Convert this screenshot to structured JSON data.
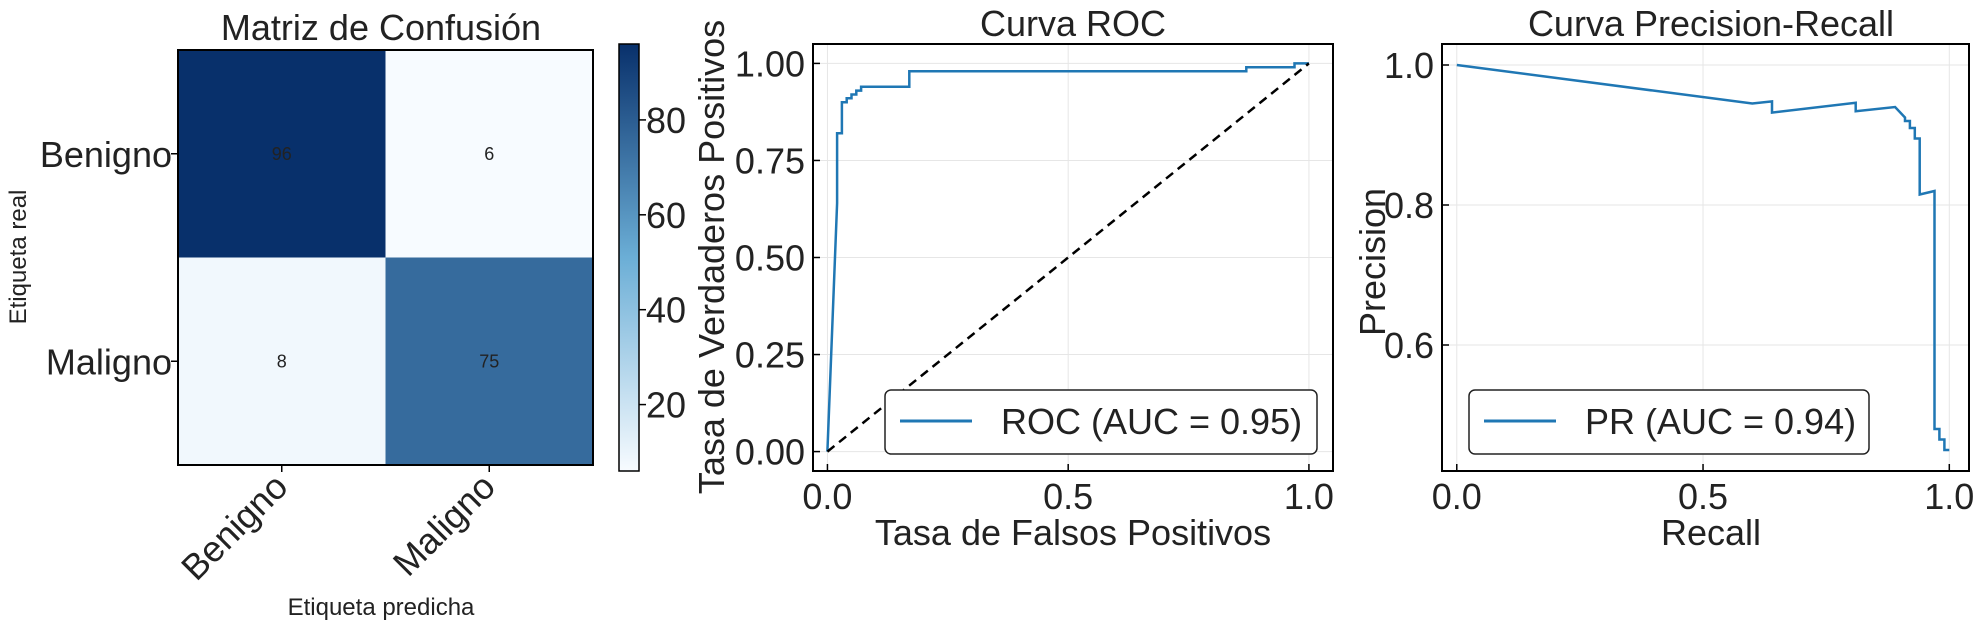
{
  "colors": {
    "cmap_low": "#f7fbff",
    "cmap_high": "#08306b",
    "line": "#1f77b4",
    "diagonal": "#000000",
    "grid": "#e6e6e6",
    "text_dark": "#000000",
    "text_light": "#ffffff"
  },
  "chart_data": [
    {
      "type": "heatmap",
      "title": "Matriz de Confusión",
      "xlabel": "Etiqueta predicha",
      "ylabel": "Etiqueta real",
      "x_categories": [
        "Benigno",
        "Maligno"
      ],
      "y_categories": [
        "Benigno",
        "Maligno"
      ],
      "values": [
        [
          96,
          6
        ],
        [
          8,
          75
        ]
      ],
      "value_labels": [
        [
          "96",
          "6"
        ],
        [
          "8",
          "75"
        ]
      ],
      "colorbar": {
        "min": 6,
        "max": 96,
        "ticks": [
          20,
          40,
          60,
          80
        ],
        "tick_labels": [
          "20",
          "40",
          "60",
          "80"
        ]
      }
    },
    {
      "type": "line",
      "title": "Curva ROC",
      "xlabel": "Tasa de Falsos Positivos",
      "ylabel": "Tasa de Verdaderos Positivos",
      "xlim": [
        -0.03,
        1.05
      ],
      "ylim": [
        -0.05,
        1.05
      ],
      "xticks": [
        0.0,
        0.5,
        1.0
      ],
      "xtick_labels": [
        "0.0",
        "0.5",
        "1.0"
      ],
      "yticks": [
        0.0,
        0.25,
        0.5,
        0.75,
        1.0
      ],
      "ytick_labels": [
        "0.00",
        "0.25",
        "0.50",
        "0.75",
        "1.00"
      ],
      "grid": true,
      "legend_position": "lower-right",
      "series": [
        {
          "name": "ROC (AUC = 0.95)",
          "x": [
            0,
            0.0,
            0.02,
            0.02,
            0.03,
            0.03,
            0.04,
            0.04,
            0.05,
            0.05,
            0.06,
            0.06,
            0.07,
            0.07,
            0.08,
            0.08,
            0.17,
            0.17,
            0.87,
            0.87,
            0.97,
            0.97,
            1.0
          ],
          "y": [
            0,
            0.0,
            0.64,
            0.82,
            0.82,
            0.9,
            0.9,
            0.91,
            0.91,
            0.92,
            0.92,
            0.93,
            0.93,
            0.94,
            0.94,
            0.94,
            0.94,
            0.98,
            0.98,
            0.99,
            0.99,
            1.0,
            1.0
          ]
        },
        {
          "name": "",
          "style": "dashed",
          "x": [
            0,
            1
          ],
          "y": [
            0,
            1
          ]
        }
      ],
      "legend_entries": [
        "ROC (AUC = 0.95)"
      ]
    },
    {
      "type": "line",
      "title": "Curva Precision-Recall",
      "xlabel": "Recall",
      "ylabel": "Precision",
      "xlim": [
        -0.03,
        1.04
      ],
      "ylim": [
        0.42,
        1.03
      ],
      "xticks": [
        0.0,
        0.5,
        1.0
      ],
      "xtick_labels": [
        "0.0",
        "0.5",
        "1.0"
      ],
      "yticks": [
        0.6,
        0.8,
        1.0
      ],
      "ytick_labels": [
        "0.6",
        "0.8",
        "1.0"
      ],
      "grid": true,
      "legend_position": "lower-left",
      "series": [
        {
          "name": "PR (AUC = 0.94)",
          "x": [
            0.0,
            0.6,
            0.64,
            0.64,
            0.81,
            0.81,
            0.89,
            0.91,
            0.91,
            0.92,
            0.92,
            0.93,
            0.93,
            0.94,
            0.94,
            0.97,
            0.97,
            0.98,
            0.98,
            0.99,
            0.99,
            1.0
          ],
          "y": [
            1.0,
            0.945,
            0.948,
            0.932,
            0.946,
            0.934,
            0.94,
            0.925,
            0.92,
            0.92,
            0.91,
            0.91,
            0.895,
            0.895,
            0.815,
            0.82,
            0.48,
            0.48,
            0.465,
            0.465,
            0.45,
            0.45
          ]
        }
      ],
      "legend_entries": [
        "PR (AUC = 0.94)"
      ]
    }
  ]
}
